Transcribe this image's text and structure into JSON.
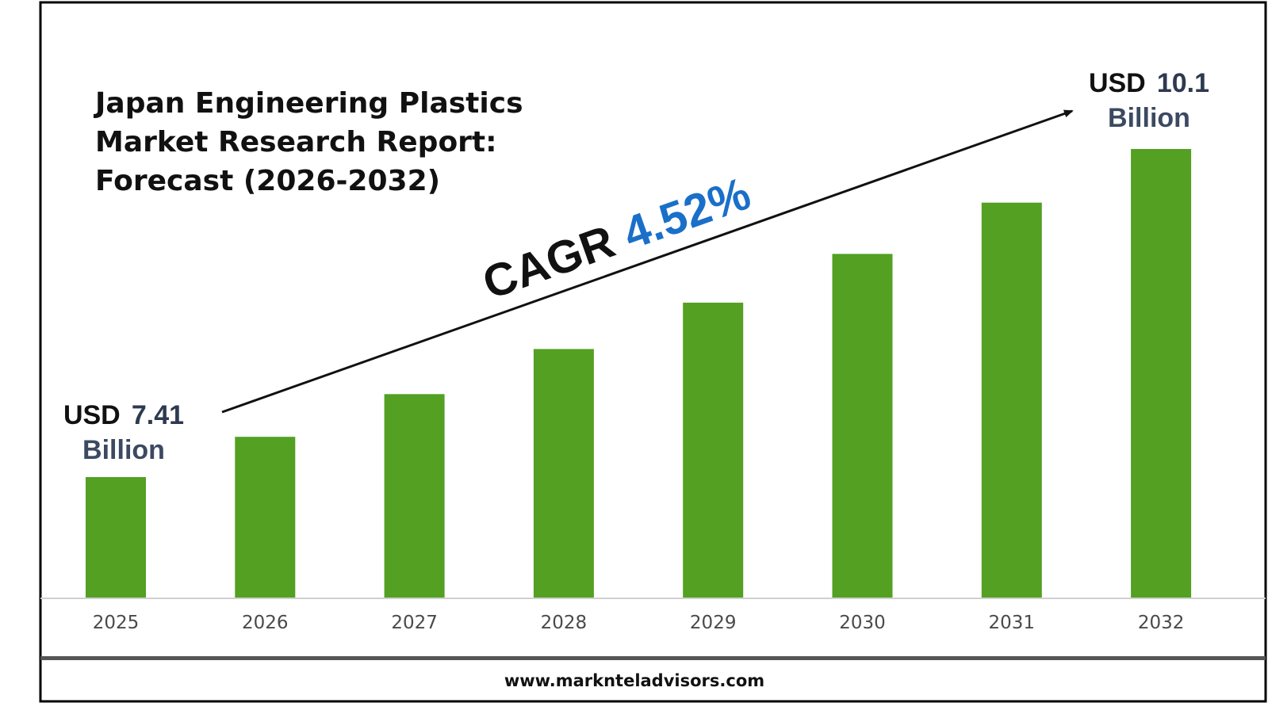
{
  "colors": {
    "bar": "#53a022",
    "cagr_value": "#1a6fc9",
    "text_dark": "#111111",
    "frame": "#000000"
  },
  "title": {
    "line1": "Japan Engineering Plastics",
    "line2": "Market Research Report:",
    "line3": "Forecast (2026-2032)"
  },
  "start_label": {
    "prefix": "USD",
    "value": "7.41",
    "unit": "Billion"
  },
  "end_label": {
    "prefix": "USD",
    "value": "10.1",
    "unit": "Billion"
  },
  "cagr": {
    "prefix": "CAGR",
    "value": "4.52%"
  },
  "footer": {
    "url": "www.marknteladvisors.com"
  },
  "chart_data": {
    "type": "bar",
    "categories": [
      "2025",
      "2026",
      "2027",
      "2028",
      "2029",
      "2030",
      "2031",
      "2032"
    ],
    "values": [
      7.41,
      7.74,
      8.09,
      8.46,
      8.84,
      9.24,
      9.66,
      10.1
    ],
    "grid": false,
    "annotations": [
      "USD 7.41 Billion",
      "USD 10.1 Billion",
      "CAGR 4.52%"
    ]
  }
}
